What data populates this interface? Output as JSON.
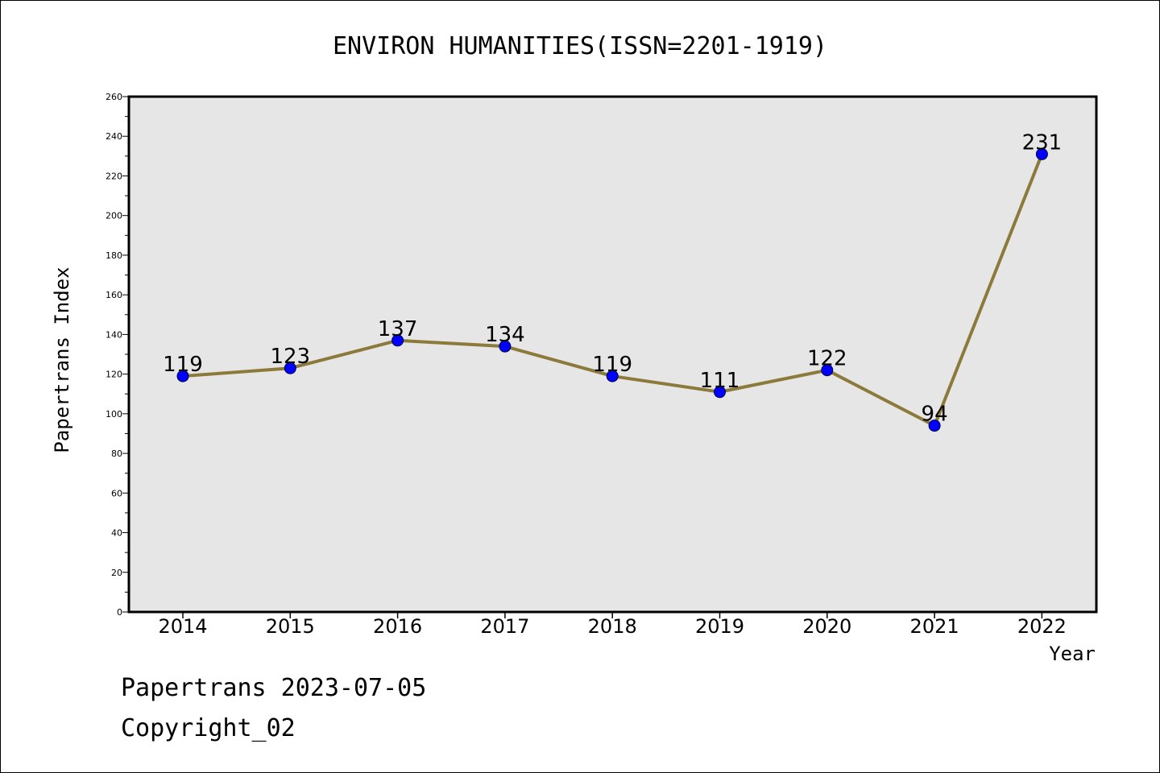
{
  "footer": {
    "date_line": "Papertrans 2023-07-05",
    "copyright": "Copyright_02"
  },
  "chart_data": {
    "type": "line",
    "title": "ENVIRON HUMANITIES(ISSN=2201-1919)",
    "xlabel": "Year",
    "ylabel": "Papertrans Index",
    "categories": [
      "2014",
      "2015",
      "2016",
      "2017",
      "2018",
      "2019",
      "2020",
      "2021",
      "2022"
    ],
    "values": [
      119,
      123,
      137,
      134,
      119,
      111,
      122,
      94,
      231
    ],
    "data_labels": [
      "119",
      "123",
      "137",
      "134",
      "119",
      "111",
      "122",
      "94",
      "231"
    ],
    "ylim": [
      0,
      260
    ],
    "y_ticks": [
      0,
      20,
      40,
      60,
      80,
      100,
      120,
      140,
      160,
      180,
      200,
      220,
      240,
      260
    ],
    "grid": false,
    "colors": {
      "line": "#8c7a3a",
      "marker": "#0000ff",
      "plot_background": "#e6e6e6"
    }
  }
}
